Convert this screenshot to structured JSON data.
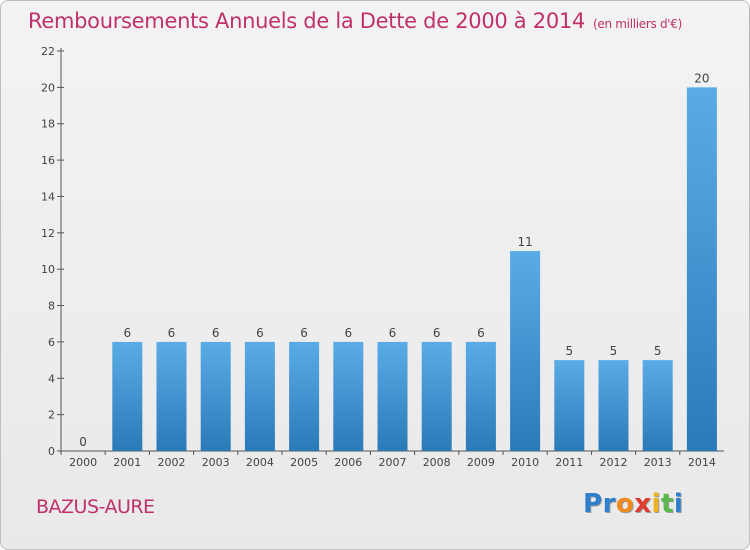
{
  "chart_data": {
    "type": "bar",
    "title": "Remboursements Annuels de la Dette de 2000 à 2014",
    "unit": "(en milliers d'€)",
    "categories": [
      "2000",
      "2001",
      "2002",
      "2003",
      "2004",
      "2005",
      "2006",
      "2007",
      "2008",
      "2009",
      "2010",
      "2011",
      "2012",
      "2013",
      "2014"
    ],
    "values": [
      0,
      6,
      6,
      6,
      6,
      6,
      6,
      6,
      6,
      6,
      11,
      5,
      5,
      5,
      20
    ],
    "ylim": [
      0,
      22
    ],
    "yticks": [
      0,
      2,
      4,
      6,
      8,
      10,
      12,
      14,
      16,
      18,
      20,
      22
    ],
    "xlabel": "",
    "ylabel": "",
    "legend": "none",
    "grid": false,
    "colors": {
      "bar_top": "#5aace6",
      "bar_bottom": "#2a7ab8",
      "title": "#c0306b",
      "axis": "#555555"
    }
  },
  "commune": "BAZUS-AURE",
  "logo": {
    "letters": [
      {
        "ch": "P",
        "color": "#2f7fcf"
      },
      {
        "ch": "r",
        "color": "#2f7fcf"
      },
      {
        "ch": "o",
        "color": "#f08a1c"
      },
      {
        "ch": "x",
        "color": "#e03a2e"
      },
      {
        "ch": "i",
        "color": "#f0b21c"
      },
      {
        "ch": "t",
        "color": "#5bb84a"
      },
      {
        "ch": "i",
        "color": "#2f7fcf"
      }
    ]
  }
}
